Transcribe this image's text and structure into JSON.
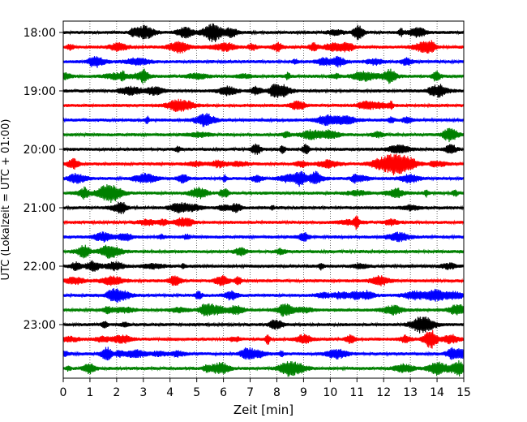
{
  "chart_data": {
    "type": "line",
    "title": "",
    "xlabel": "Zeit  [min]",
    "ylabel": "UTC (Lokalzeit = UTC + 01:00)",
    "xlim": [
      0,
      15
    ],
    "x_ticks": [
      "0",
      "1",
      "2",
      "3",
      "4",
      "5",
      "6",
      "7",
      "8",
      "9",
      "10",
      "11",
      "12",
      "13",
      "14",
      "15"
    ],
    "y_ticks": [
      "18:00",
      "19:00",
      "20:00",
      "21:00",
      "22:00",
      "23:00"
    ],
    "grid": "vertical dotted lines at each minute",
    "trace_interval_min": 15,
    "trace_colors": [
      "#000000",
      "#ff0000",
      "#0000ff",
      "#008000"
    ],
    "traces": [
      {
        "start": "18:00",
        "color": "#000000"
      },
      {
        "start": "18:15",
        "color": "#ff0000"
      },
      {
        "start": "18:30",
        "color": "#0000ff"
      },
      {
        "start": "18:45",
        "color": "#008000"
      },
      {
        "start": "19:00",
        "color": "#000000"
      },
      {
        "start": "19:15",
        "color": "#ff0000"
      },
      {
        "start": "19:30",
        "color": "#0000ff"
      },
      {
        "start": "19:45",
        "color": "#008000"
      },
      {
        "start": "20:00",
        "color": "#000000"
      },
      {
        "start": "20:15",
        "color": "#ff0000"
      },
      {
        "start": "20:30",
        "color": "#0000ff"
      },
      {
        "start": "20:45",
        "color": "#008000"
      },
      {
        "start": "21:00",
        "color": "#000000"
      },
      {
        "start": "21:15",
        "color": "#ff0000"
      },
      {
        "start": "21:30",
        "color": "#0000ff"
      },
      {
        "start": "21:45",
        "color": "#008000"
      },
      {
        "start": "22:00",
        "color": "#000000"
      },
      {
        "start": "22:15",
        "color": "#ff0000"
      },
      {
        "start": "22:30",
        "color": "#0000ff"
      },
      {
        "start": "22:45",
        "color": "#008000"
      },
      {
        "start": "23:00",
        "color": "#000000"
      },
      {
        "start": "23:15",
        "color": "#ff0000"
      },
      {
        "start": "23:30",
        "color": "#0000ff"
      },
      {
        "start": "23:45",
        "color": "#008000"
      }
    ]
  }
}
